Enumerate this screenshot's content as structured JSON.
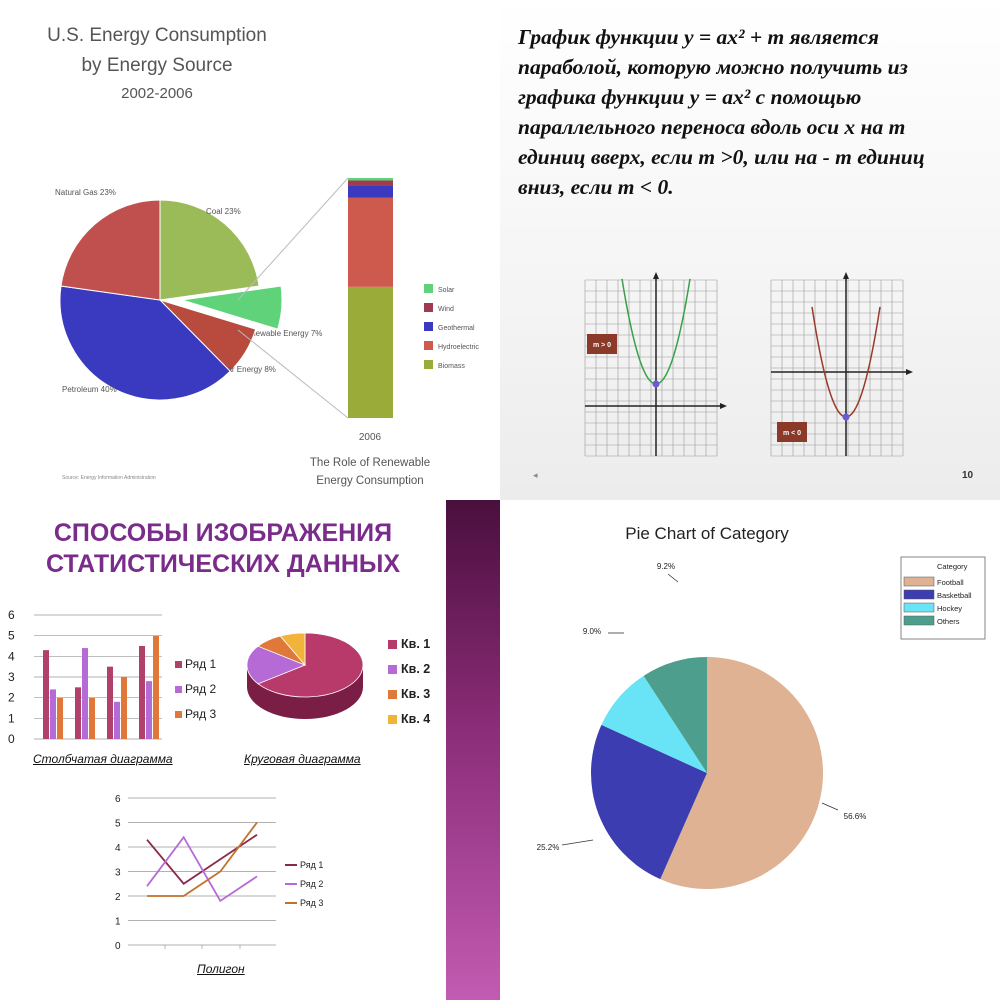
{
  "chart_data": [
    {
      "type": "pie",
      "title": "U.S. Energy Consumption",
      "subtitle": "by Energy Source",
      "period": "2002-2006",
      "slices": [
        {
          "label": "Natural Gas 23%",
          "value": 23,
          "color": "#c0504d"
        },
        {
          "label": "Coal 23%",
          "value": 23,
          "color": "#9bbb59"
        },
        {
          "label": "Renewable Energy 7%",
          "value": 7,
          "color": "#5fd27a"
        },
        {
          "label": "Nuclear Energy 8%",
          "value": 8,
          "color": "#b84a3e"
        },
        {
          "label": "Petroleum 40%",
          "value": 40,
          "color": "#3a3ac0"
        }
      ],
      "stacked_bar": {
        "year": "2006",
        "caption": "The Role of Renewable Energy Consumption",
        "segments": [
          {
            "name": "Biomass",
            "value": 53,
            "color": "#9bab3a"
          },
          {
            "name": "Hydroelectric",
            "value": 36,
            "color": "#cd5a4d"
          },
          {
            "name": "Geothermal",
            "value": 5,
            "color": "#3a3ac0"
          },
          {
            "name": "Wind",
            "value": 2,
            "color": "#a03a50"
          },
          {
            "name": "Solar",
            "value": 1,
            "color": "#5fd27a"
          }
        ],
        "legend": [
          "Solar",
          "Wind",
          "Geothermal",
          "Hydroelectric",
          "Biomass"
        ]
      },
      "source": "Source: Energy Information Administration"
    },
    {
      "type": "bar",
      "caption": "Столбчатая диаграмма",
      "categories": [
        "",
        "",
        "",
        ""
      ],
      "series": [
        {
          "name": "Ряд 1",
          "values": [
            4.3,
            2.5,
            3.5,
            4.5
          ],
          "color": "#b0416a"
        },
        {
          "name": "Ряд 2",
          "values": [
            2.4,
            4.4,
            1.8,
            2.8
          ],
          "color": "#b66ad6"
        },
        {
          "name": "Ряд 3",
          "values": [
            2,
            2,
            3,
            5
          ],
          "color": "#e0783a"
        }
      ],
      "ylim": [
        0,
        6
      ],
      "yticks": [
        "0",
        "1",
        "2",
        "3",
        "4",
        "5",
        "6"
      ],
      "grid": true,
      "legend": "right"
    },
    {
      "type": "pie",
      "caption": "Круговая диаграмма",
      "slices": [
        {
          "label": "Кв. 1",
          "value": 65,
          "color": "#b83a6a"
        },
        {
          "label": "Кв. 2",
          "value": 20,
          "color": "#b66ad6"
        },
        {
          "label": "Кв. 3",
          "value": 8,
          "color": "#e0783a"
        },
        {
          "label": "Кв. 4",
          "value": 7,
          "color": "#f2b33a"
        }
      ],
      "legend": "right"
    },
    {
      "type": "line",
      "caption": "Полигон",
      "x": [
        1,
        2,
        3,
        4
      ],
      "series": [
        {
          "name": "Ряд 1",
          "values": [
            4.3,
            2.5,
            3.5,
            4.5
          ],
          "color": "#8a2a4a"
        },
        {
          "name": "Ряд 2",
          "values": [
            2.4,
            4.4,
            1.8,
            2.8
          ],
          "color": "#b66ad6"
        },
        {
          "name": "Ряд 3",
          "values": [
            2,
            2,
            3,
            5
          ],
          "color": "#c0722a"
        }
      ],
      "ylim": [
        0,
        6
      ],
      "yticks": [
        "0",
        "1",
        "2",
        "3",
        "4",
        "5",
        "6"
      ],
      "grid": true,
      "legend": "right"
    },
    {
      "type": "pie",
      "title": "Pie Chart of Category",
      "slices": [
        {
          "label": "Football",
          "value": 56.6,
          "text": "56.6%",
          "color": "#deb293"
        },
        {
          "label": "Basketball",
          "value": 25.2,
          "text": "25.2%",
          "color": "#3c3db0"
        },
        {
          "label": "Hockey",
          "value": 9.0,
          "text": "9.0%",
          "color": "#68e4f6"
        },
        {
          "label": "Others",
          "value": 9.2,
          "text": "9.2%",
          "color": "#4e9e8e"
        }
      ],
      "legend_title": "Category",
      "legend": "top-right"
    }
  ],
  "parabola_slide": {
    "lines": [
      "График функции y = ax² + m является",
      "параболой, которую можно получить из",
      "графика функции y = ax² с помощью",
      "параллельного переноса вдоль оси x на m",
      "единиц вверх, если m >0, или на - m единиц",
      "вниз, если m < 0."
    ],
    "graph1_label": "m > 0",
    "graph2_label": "m < 0",
    "page_number": "10"
  },
  "stats_slide": {
    "title_line1": "СПОСОБЫ ИЗОБРАЖЕНИЯ",
    "title_line2": "СТАТИСТИЧЕСКИХ ДАННЫХ"
  },
  "colors": {
    "slide_title": "#7a2c8a",
    "purple_band": "#8a2c77"
  }
}
